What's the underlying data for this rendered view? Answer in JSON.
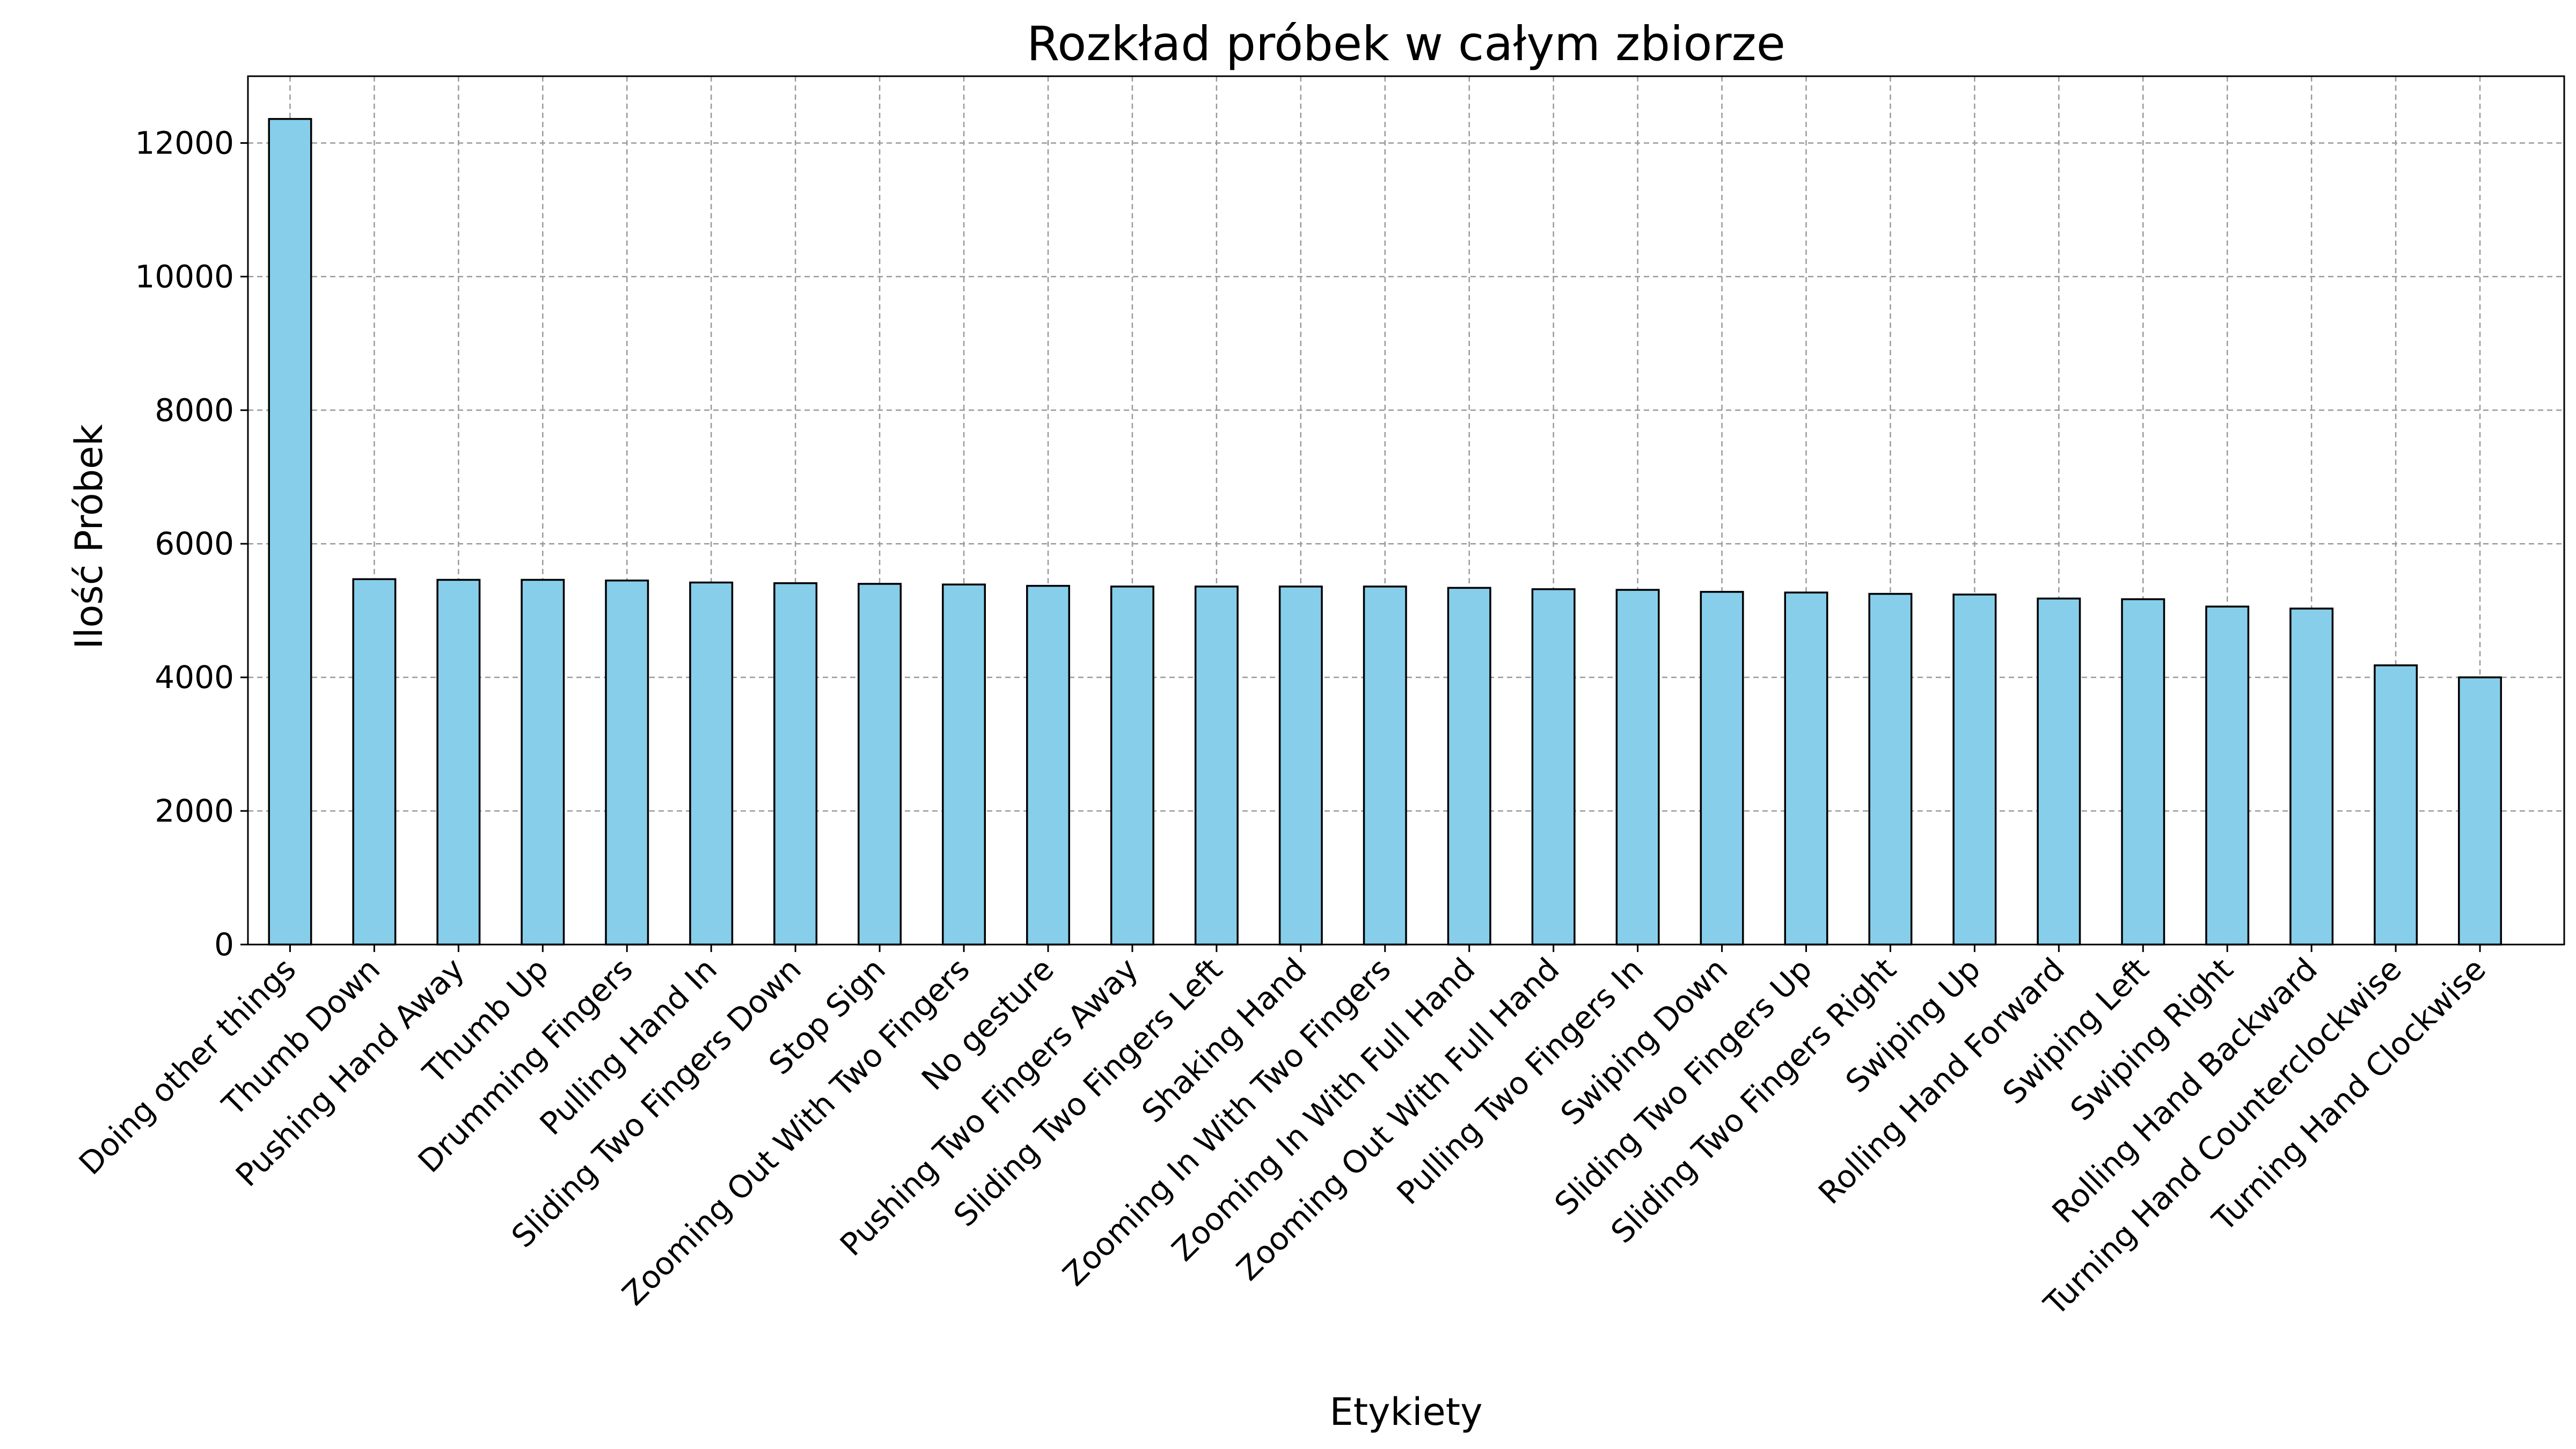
{
  "chart_data": {
    "type": "bar",
    "title": "Rozkład próbek w całym zbiorze",
    "xlabel": "Etykiety",
    "ylabel": "Ilość Próbek",
    "ylim": [
      0,
      13000
    ],
    "yticks": [
      0,
      2000,
      4000,
      6000,
      8000,
      10000,
      12000
    ],
    "grid": true,
    "bar_color": "#87CEEB",
    "edge_color": "#000000",
    "categories": [
      "Doing other things",
      "Thumb Down",
      "Pushing Hand Away",
      "Thumb Up",
      "Drumming Fingers",
      "Pulling Hand In",
      "Sliding Two Fingers Down",
      "Stop Sign",
      "Zooming Out With Two Fingers",
      "No gesture",
      "Pushing Two Fingers Away",
      "Sliding Two Fingers Left",
      "Shaking Hand",
      "Zooming In With Two Fingers",
      "Zooming In With Full Hand",
      "Zooming Out With Full Hand",
      "Pulling Two Fingers In",
      "Swiping Down",
      "Sliding Two Fingers Up",
      "Sliding Two Fingers Right",
      "Swiping Up",
      "Rolling Hand Forward",
      "Swiping Left",
      "Swiping Right",
      "Rolling Hand Backward",
      "Turning Hand Counterclockwise",
      "Turning Hand Clockwise"
    ],
    "values": [
      12360,
      5470,
      5460,
      5460,
      5450,
      5420,
      5410,
      5400,
      5390,
      5370,
      5360,
      5360,
      5360,
      5360,
      5340,
      5320,
      5310,
      5280,
      5270,
      5250,
      5240,
      5180,
      5170,
      5060,
      5030,
      4180,
      4000
    ]
  }
}
